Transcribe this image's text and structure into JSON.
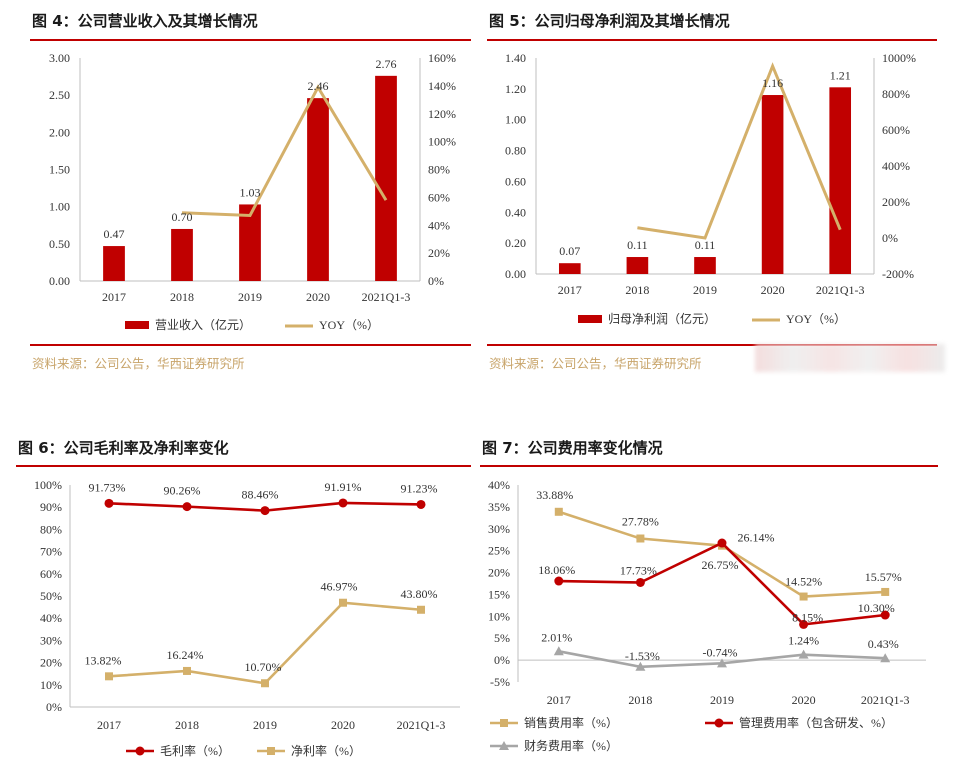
{
  "colors": {
    "bar": "#c00000",
    "yoy": "#d4b06a",
    "rule": "#c00000",
    "gray": "#a6a6a6",
    "source": "#c8a46a"
  },
  "figures": {
    "fig4": {
      "title": "图 4：公司营业收入及其增长情况",
      "source": "资料来源：公司公告，华西证券研究所"
    },
    "fig5": {
      "title": "图 5：公司归母净利润及其增长情况",
      "source": "资料来源：公司公告，华西证券研究所"
    },
    "fig6": {
      "title": "图 6：公司毛利率及净利率变化"
    },
    "fig7": {
      "title": "图 7：公司费用率变化情况"
    }
  },
  "chart_data": [
    {
      "id": "fig4",
      "type": "bar+line",
      "categories": [
        "2017",
        "2018",
        "2019",
        "2020",
        "2021Q1-3"
      ],
      "bars": {
        "name": "营业收入（亿元）",
        "values": [
          0.47,
          0.7,
          1.03,
          2.46,
          2.76
        ],
        "labels": [
          "0.47",
          "0.70",
          "1.03",
          "2.46",
          "2.76"
        ]
      },
      "line": {
        "name": "YOY（%）",
        "values": [
          null,
          49,
          47,
          139,
          58
        ]
      },
      "y_left": {
        "min": 0,
        "max": 3.0,
        "ticks": [
          "0.00",
          "0.50",
          "1.00",
          "1.50",
          "2.00",
          "2.50",
          "3.00"
        ]
      },
      "y_right": {
        "min": 0,
        "max": 160,
        "ticks": [
          "0%",
          "20%",
          "40%",
          "60%",
          "80%",
          "100%",
          "120%",
          "140%",
          "160%"
        ]
      }
    },
    {
      "id": "fig5",
      "type": "bar+line",
      "categories": [
        "2017",
        "2018",
        "2019",
        "2020",
        "2021Q1-3"
      ],
      "bars": {
        "name": "归母净利润（亿元）",
        "values": [
          0.07,
          0.11,
          0.11,
          1.16,
          1.21
        ],
        "labels": [
          "0.07",
          "0.11",
          "0.11",
          "1.16",
          "1.21"
        ]
      },
      "line": {
        "name": "YOY（%）",
        "values": [
          null,
          57,
          0,
          955,
          46
        ]
      },
      "y_left": {
        "min": 0,
        "max": 1.4,
        "ticks": [
          "0.00",
          "0.20",
          "0.40",
          "0.60",
          "0.80",
          "1.00",
          "1.20",
          "1.40"
        ]
      },
      "y_right": {
        "min": -200,
        "max": 1000,
        "ticks": [
          "-200%",
          "0%",
          "200%",
          "400%",
          "600%",
          "800%",
          "1000%"
        ]
      }
    },
    {
      "id": "fig6",
      "type": "line",
      "categories": [
        "2017",
        "2018",
        "2019",
        "2020",
        "2021Q1-3"
      ],
      "series": [
        {
          "name": "毛利率（%）",
          "color": "#c00000",
          "marker": "circle",
          "values": [
            91.73,
            90.26,
            88.46,
            91.91,
            91.23
          ],
          "labels": [
            "91.73%",
            "90.26%",
            "88.46%",
            "91.91%",
            "91.23%"
          ]
        },
        {
          "name": "净利率（%）",
          "color": "#d4b06a",
          "marker": "square",
          "values": [
            13.82,
            16.24,
            10.7,
            46.97,
            43.8
          ],
          "labels": [
            "13.82%",
            "16.24%",
            "10.70%",
            "46.97%",
            "43.80%"
          ]
        }
      ],
      "y": {
        "min": 0,
        "max": 100,
        "ticks": [
          "0%",
          "10%",
          "20%",
          "30%",
          "40%",
          "50%",
          "60%",
          "70%",
          "80%",
          "90%",
          "100%"
        ]
      }
    },
    {
      "id": "fig7",
      "type": "line",
      "categories": [
        "2017",
        "2018",
        "2019",
        "2020",
        "2021Q1-3"
      ],
      "series": [
        {
          "name": "销售费用率（%）",
          "color": "#d4b06a",
          "marker": "square",
          "values": [
            33.88,
            27.78,
            26.14,
            14.52,
            15.57
          ],
          "labels": [
            "33.88%",
            "27.78%",
            "26.14%",
            "14.52%",
            "15.57%"
          ]
        },
        {
          "name": "管理费用率（包含研发、%）",
          "color": "#c00000",
          "marker": "circle",
          "values": [
            18.06,
            17.73,
            26.75,
            8.15,
            10.3
          ],
          "labels": [
            "18.06%",
            "17.73%",
            "26.75%",
            "8.15%",
            "10.30%"
          ]
        },
        {
          "name": "财务费用率（%）",
          "color": "#a6a6a6",
          "marker": "triangle",
          "values": [
            2.01,
            -1.53,
            -0.74,
            1.24,
            0.43
          ],
          "labels": [
            "2.01%",
            "-1.53%",
            "-0.74%",
            "1.24%",
            "0.43%"
          ]
        }
      ],
      "y": {
        "min": -5,
        "max": 40,
        "ticks": [
          "-5%",
          "0%",
          "5%",
          "10%",
          "15%",
          "20%",
          "25%",
          "30%",
          "35%",
          "40%"
        ]
      }
    }
  ]
}
